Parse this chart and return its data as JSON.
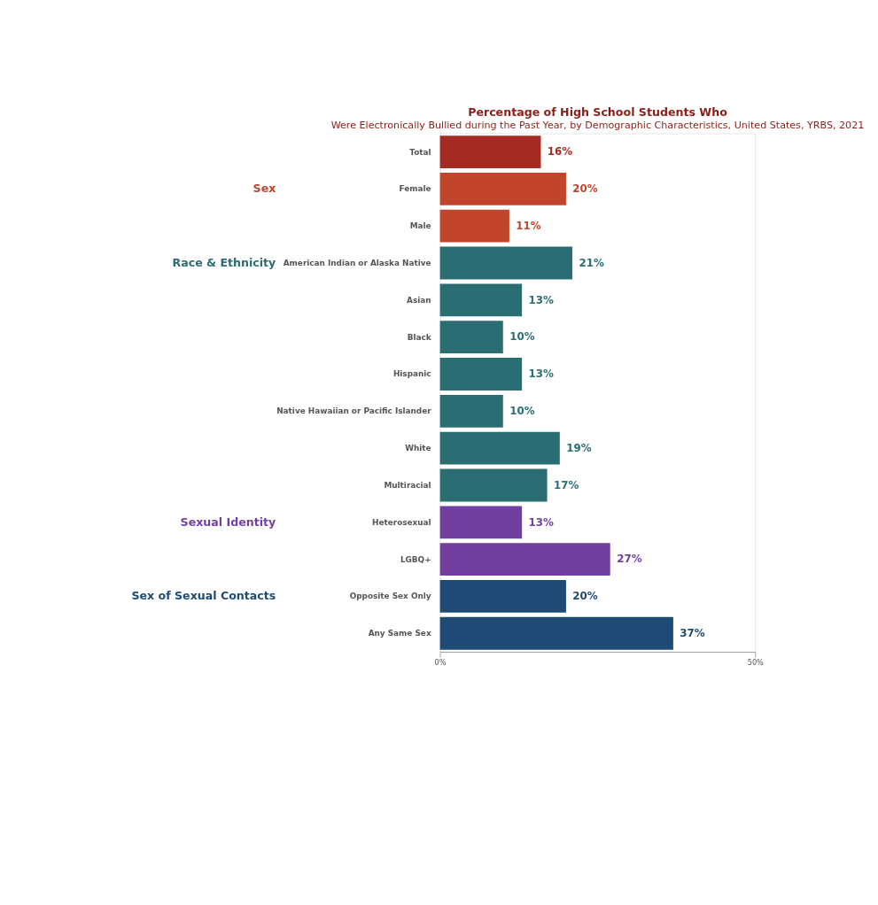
{
  "chart_data": {
    "type": "bar",
    "orientation": "horizontal",
    "title": "Percentage of High School Students Who",
    "subtitle": "Were Electronically Bullied during the Past Year, by Demographic Characteristics, United States, YRBS, 2021",
    "categories": [
      "Total",
      "Female",
      "Male",
      "American Indian or Alaska Native",
      "Asian",
      "Black",
      "Hispanic",
      "Native Hawaiian or Pacific Islander",
      "White",
      "Multiracial",
      "Heterosexual",
      "LGBQ+",
      "Opposite Sex Only",
      "Any Same Sex"
    ],
    "series": [
      {
        "color": "#a52a22",
        "values": [
          16,
          null,
          null,
          null,
          null,
          null,
          null,
          null,
          null,
          null,
          null,
          null,
          null,
          null
        ],
        "value_labels": [
          "16%",
          null,
          null,
          null,
          null,
          null,
          null,
          null,
          null,
          null,
          null,
          null,
          null,
          null
        ]
      },
      {
        "name": "Sex",
        "color": "#c2452b",
        "values": [
          null,
          20,
          11,
          null,
          null,
          null,
          null,
          null,
          null,
          null,
          null,
          null,
          null,
          null
        ],
        "value_labels": [
          null,
          "20%",
          "11%",
          null,
          null,
          null,
          null,
          null,
          null,
          null,
          null,
          null,
          null,
          null
        ]
      },
      {
        "name": "Race & Ethnicity",
        "color": "#2a6d72",
        "values": [
          null,
          null,
          null,
          21,
          13,
          10,
          13,
          10,
          19,
          17,
          null,
          null,
          null,
          null
        ],
        "value_labels": [
          null,
          null,
          null,
          "21%",
          "13%",
          "10%",
          "13%",
          "10%",
          "19%",
          "17%",
          null,
          null,
          null,
          null
        ]
      },
      {
        "name": "Sexual Identity",
        "color": "#723fa0",
        "values": [
          null,
          null,
          null,
          null,
          null,
          null,
          null,
          null,
          null,
          null,
          13,
          27,
          null,
          null
        ],
        "value_labels": [
          null,
          null,
          null,
          null,
          null,
          null,
          null,
          null,
          null,
          null,
          "13%",
          "27%",
          null,
          null
        ]
      },
      {
        "name": "Sex of Sexual Contacts",
        "color": "#1d4b75",
        "values": [
          null,
          null,
          null,
          null,
          null,
          null,
          null,
          null,
          null,
          null,
          null,
          null,
          20,
          37
        ],
        "value_labels": [
          null,
          null,
          null,
          null,
          null,
          null,
          null,
          null,
          null,
          null,
          null,
          null,
          "20%",
          "37%"
        ]
      }
    ],
    "xlim": [
      0,
      50
    ],
    "xticks": [
      {
        "value": 0,
        "label": "0%"
      },
      {
        "value": 50,
        "label": "50%"
      }
    ],
    "grid": false,
    "legend": false
  }
}
